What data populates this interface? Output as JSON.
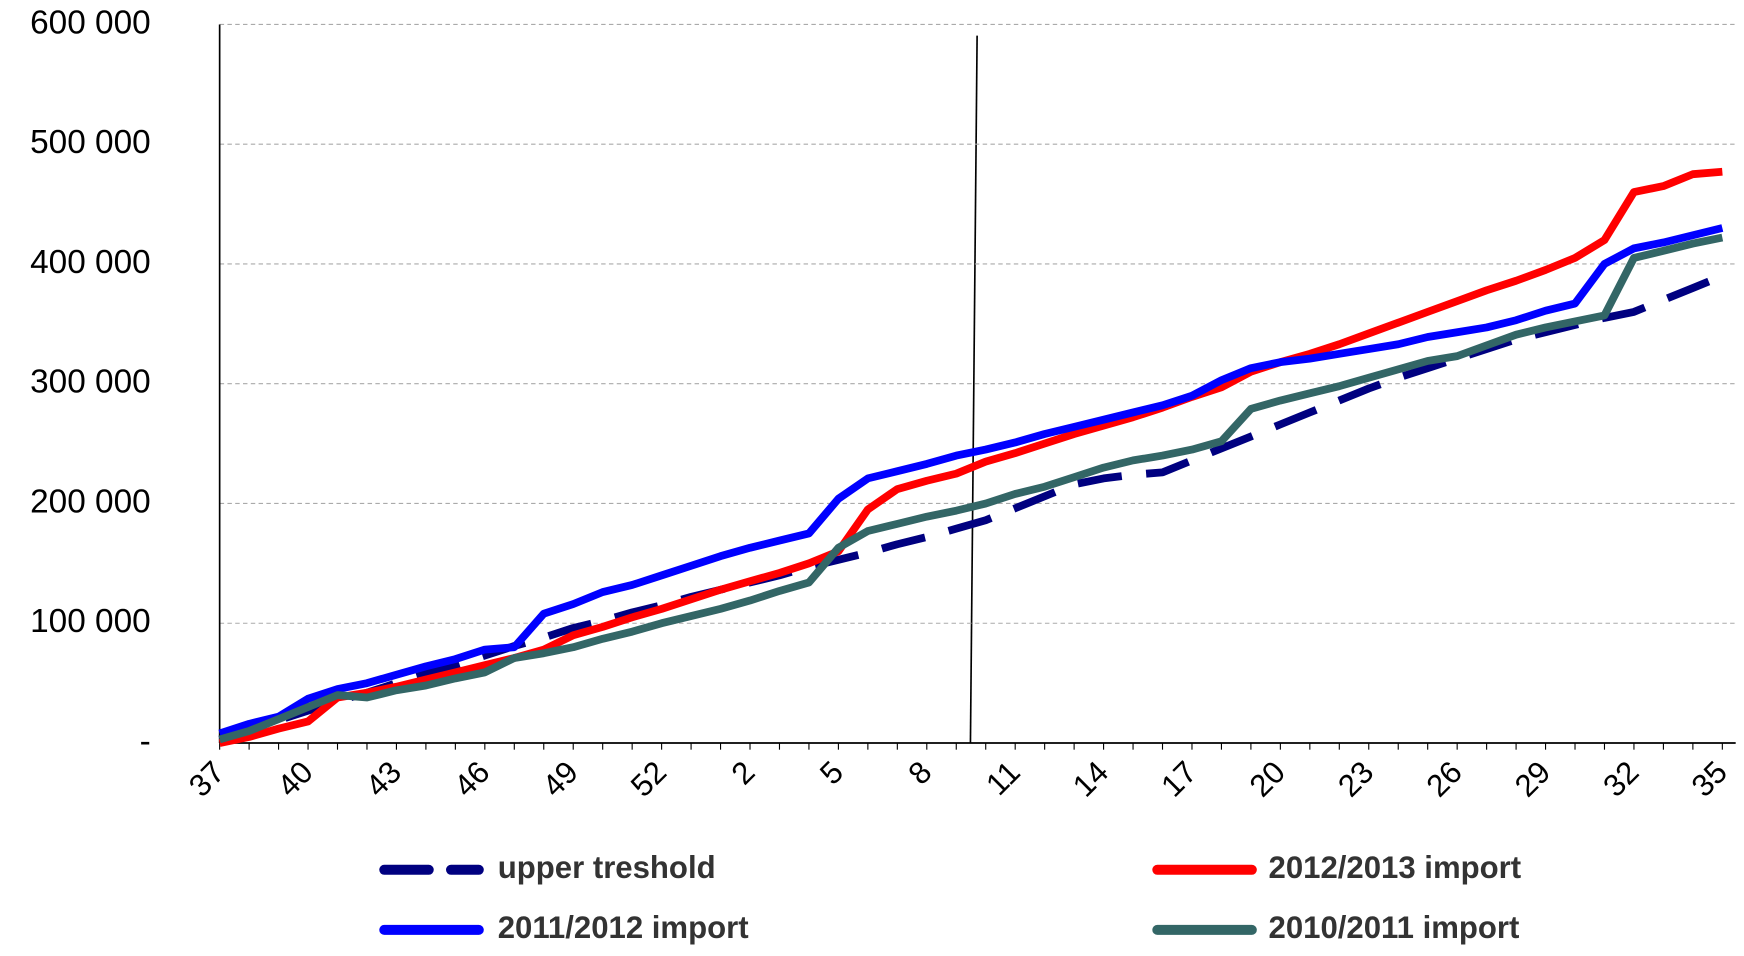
{
  "chart_data": {
    "type": "line",
    "categories": [
      "37",
      null,
      null,
      "40",
      null,
      null,
      "43",
      null,
      null,
      "46",
      null,
      null,
      "49",
      null,
      null,
      "52",
      null,
      null,
      "2",
      null,
      null,
      "5",
      null,
      null,
      "8",
      null,
      null,
      "11",
      null,
      null,
      "14",
      null,
      null,
      "17",
      null,
      null,
      "20",
      null,
      null,
      "23",
      null,
      null,
      "26",
      null,
      null,
      "29",
      null,
      null,
      "32",
      null,
      null,
      "35"
    ],
    "series": [
      {
        "name": "upper treshold",
        "color": "#000080",
        "dashed": true,
        "values": [
          3000,
          11000,
          19000,
          27000,
          35000,
          42000,
          50000,
          58000,
          65000,
          73000,
          81000,
          88000,
          96000,
          102000,
          109000,
          115000,
          122000,
          128000,
          134000,
          140000,
          147000,
          153000,
          159000,
          166000,
          172000,
          179000,
          186000,
          196000,
          206000,
          216000,
          221000,
          224000,
          226000,
          236000,
          246000,
          256000,
          266000,
          276000,
          286000,
          296000,
          305000,
          313000,
          321000,
          329000,
          337000,
          343000,
          349000,
          355000,
          360000,
          370000,
          380000,
          390000
        ]
      },
      {
        "name": "2012/2013 import",
        "color": "#ff0000",
        "values": [
          0,
          5000,
          12000,
          18000,
          38000,
          42000,
          47000,
          53000,
          59000,
          65000,
          71000,
          78000,
          90000,
          97000,
          105000,
          112000,
          120000,
          128000,
          135000,
          142000,
          150000,
          160000,
          195000,
          212000,
          219000,
          225000,
          235000,
          242000,
          250000,
          258000,
          265000,
          272000,
          280000,
          289000,
          297000,
          310000,
          318000,
          325000,
          333000,
          342000,
          351000,
          360000,
          369000,
          378000,
          386000,
          395000,
          405000,
          420000,
          460000,
          465000,
          475000,
          477000
        ]
      },
      {
        "name": "2011/2012 import",
        "color": "#0000ff",
        "values": [
          8000,
          16000,
          22000,
          37000,
          45000,
          50000,
          57000,
          64000,
          70000,
          78000,
          80000,
          108000,
          116000,
          126000,
          132000,
          140000,
          148000,
          156000,
          163000,
          169000,
          175000,
          204000,
          221000,
          227000,
          233000,
          240000,
          245000,
          251000,
          258000,
          264000,
          270000,
          276000,
          282000,
          290000,
          303000,
          313000,
          318000,
          321000,
          325000,
          329000,
          333000,
          339000,
          343000,
          347000,
          353000,
          361000,
          367000,
          400000,
          413000,
          418000,
          424000,
          430000
        ]
      },
      {
        "name": "2010/2011 import",
        "color": "#336666",
        "values": [
          3000,
          10000,
          20000,
          30000,
          40000,
          38000,
          44000,
          48000,
          54000,
          59000,
          71000,
          75000,
          80000,
          87000,
          93000,
          100000,
          106000,
          112000,
          119000,
          127000,
          134000,
          163000,
          177000,
          183000,
          189000,
          194000,
          200000,
          208000,
          214000,
          222000,
          230000,
          236000,
          240000,
          245000,
          252000,
          279000,
          286000,
          292000,
          298000,
          305000,
          312000,
          319000,
          323000,
          332000,
          341000,
          347000,
          352000,
          357000,
          405000,
          411000,
          417000,
          422000
        ]
      }
    ],
    "ylim": [
      0,
      600000
    ],
    "yticks": [
      {
        "value": 0,
        "label": "-"
      },
      {
        "value": 100000,
        "label": "100 000"
      },
      {
        "value": 200000,
        "label": "200 000"
      },
      {
        "value": 300000,
        "label": "300 000"
      },
      {
        "value": 400000,
        "label": "400 000"
      },
      {
        "value": 500000,
        "label": "500 000"
      },
      {
        "value": 600000,
        "label": "600 000"
      }
    ],
    "grid": true
  }
}
